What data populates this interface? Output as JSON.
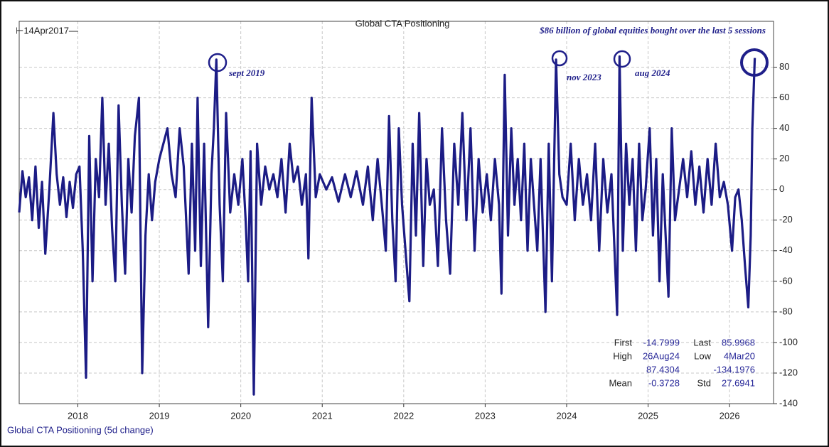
{
  "chart_data": {
    "type": "line",
    "title": "Global CTA Positioning",
    "start_label": "⊢14Apr2017—",
    "headline": "$86 billion of global equities bought over the last 5 sessions",
    "annotations": [
      "sept 2019",
      "nov 2023",
      "aug 2024"
    ],
    "stats": [
      [
        "First",
        "-14.7999",
        "Last",
        "85.9968"
      ],
      [
        "High",
        "26Aug24",
        "Low",
        "4Mar20"
      ],
      [
        "87.4304",
        "-134.1976"
      ],
      [
        "Mean",
        "-0.3728",
        "Std",
        "27.6941"
      ]
    ],
    "xlim": [
      2017.28,
      2026.54
    ],
    "xticks": [
      2018,
      2019,
      2020,
      2021,
      2022,
      2023,
      2024,
      2025,
      2026
    ],
    "ylim": [
      -140,
      110
    ],
    "yticks": [
      -140,
      -120,
      -100,
      -80,
      -60,
      -40,
      -20,
      0,
      20,
      40,
      60,
      80
    ],
    "grid": true,
    "x": [
      2017.28,
      2017.32,
      2017.36,
      2017.4,
      2017.44,
      2017.48,
      2017.52,
      2017.56,
      2017.6,
      2017.65,
      2017.7,
      2017.74,
      2017.78,
      2017.82,
      2017.86,
      2017.9,
      2017.94,
      2017.98,
      2018.02,
      2018.06,
      2018.1,
      2018.14,
      2018.18,
      2018.22,
      2018.26,
      2018.3,
      2018.34,
      2018.38,
      2018.42,
      2018.46,
      2018.5,
      2018.54,
      2018.58,
      2018.62,
      2018.66,
      2018.7,
      2018.75,
      2018.79,
      2018.83,
      2018.87,
      2018.91,
      2018.95,
      2019.0,
      2019.05,
      2019.1,
      2019.15,
      2019.2,
      2019.25,
      2019.3,
      2019.36,
      2019.4,
      2019.44,
      2019.47,
      2019.51,
      2019.55,
      2019.6,
      2019.64,
      2019.67,
      2019.7,
      2019.74,
      2019.78,
      2019.82,
      2019.87,
      2019.92,
      2019.97,
      2020.02,
      2020.06,
      2020.09,
      2020.12,
      2020.16,
      2020.2,
      2020.25,
      2020.3,
      2020.35,
      2020.4,
      2020.45,
      2020.5,
      2020.55,
      2020.6,
      2020.65,
      2020.7,
      2020.75,
      2020.8,
      2020.83,
      2020.87,
      2020.92,
      2020.97,
      2021.05,
      2021.12,
      2021.2,
      2021.28,
      2021.35,
      2021.42,
      2021.5,
      2021.56,
      2021.62,
      2021.68,
      2021.74,
      2021.78,
      2021.82,
      2021.86,
      2021.9,
      2021.94,
      2021.98,
      2022.03,
      2022.07,
      2022.11,
      2022.15,
      2022.19,
      2022.24,
      2022.28,
      2022.32,
      2022.37,
      2022.42,
      2022.47,
      2022.52,
      2022.57,
      2022.62,
      2022.67,
      2022.72,
      2022.77,
      2022.82,
      2022.87,
      2022.92,
      2022.97,
      2023.02,
      2023.07,
      2023.12,
      2023.17,
      2023.2,
      2023.24,
      2023.28,
      2023.32,
      2023.36,
      2023.4,
      2023.44,
      2023.48,
      2023.52,
      2023.56,
      2023.6,
      2023.64,
      2023.68,
      2023.71,
      2023.74,
      2023.78,
      2023.82,
      2023.87,
      2023.91,
      2023.95,
      2024.0,
      2024.05,
      2024.1,
      2024.15,
      2024.2,
      2024.25,
      2024.3,
      2024.35,
      2024.4,
      2024.45,
      2024.5,
      2024.55,
      2024.62,
      2024.65,
      2024.69,
      2024.73,
      2024.77,
      2024.81,
      2024.85,
      2024.89,
      2024.93,
      2024.97,
      2025.02,
      2025.06,
      2025.1,
      2025.14,
      2025.18,
      2025.25,
      2025.29,
      2025.33,
      2025.38,
      2025.43,
      2025.48,
      2025.53,
      2025.58,
      2025.63,
      2025.68,
      2025.73,
      2025.78,
      2025.83,
      2025.88,
      2025.93,
      2025.98,
      2026.03,
      2026.07,
      2026.11,
      2026.15,
      2026.19,
      2026.23,
      2026.26,
      2026.28,
      2026.31
    ],
    "series": [
      {
        "name": "Global CTA Positioning (5d change)",
        "color": "#1c1c85",
        "values": [
          -15,
          12,
          -5,
          8,
          -20,
          15,
          -25,
          5,
          -42,
          0,
          50,
          10,
          -10,
          8,
          -18,
          5,
          -12,
          10,
          15,
          -40,
          -123,
          35,
          -60,
          20,
          -5,
          60,
          -10,
          30,
          -25,
          -60,
          55,
          -10,
          -55,
          20,
          -15,
          35,
          60,
          -120,
          -30,
          10,
          -20,
          5,
          20,
          30,
          40,
          10,
          -5,
          40,
          15,
          -55,
          30,
          -40,
          60,
          -50,
          30,
          -90,
          10,
          40,
          85,
          -10,
          -60,
          50,
          -15,
          10,
          -10,
          20,
          -20,
          -60,
          25,
          -134,
          30,
          -10,
          15,
          0,
          10,
          -5,
          20,
          -15,
          30,
          5,
          15,
          -10,
          10,
          -45,
          60,
          -5,
          10,
          0,
          8,
          -8,
          10,
          -5,
          12,
          -10,
          15,
          -20,
          20,
          -15,
          -40,
          48,
          -20,
          -60,
          40,
          -10,
          -45,
          -73,
          30,
          -30,
          50,
          -50,
          20,
          -10,
          0,
          -50,
          40,
          -20,
          -55,
          30,
          -10,
          50,
          -20,
          40,
          -40,
          20,
          -15,
          10,
          -20,
          20,
          -10,
          -68,
          75,
          -30,
          40,
          -10,
          20,
          -20,
          30,
          -40,
          20,
          -10,
          -40,
          20,
          -30,
          -80,
          30,
          -60,
          85,
          10,
          -5,
          -10,
          30,
          -20,
          20,
          -10,
          10,
          -20,
          30,
          -40,
          20,
          -15,
          10,
          -82,
          87,
          -40,
          30,
          -10,
          20,
          -40,
          30,
          -20,
          0,
          40,
          -30,
          20,
          -60,
          10,
          -70,
          40,
          -20,
          0,
          20,
          -5,
          25,
          -10,
          15,
          -15,
          20,
          -10,
          30,
          -5,
          5,
          -10,
          -40,
          -5,
          0,
          -20,
          -50,
          -77,
          -30,
          40,
          86
        ]
      }
    ]
  }
}
